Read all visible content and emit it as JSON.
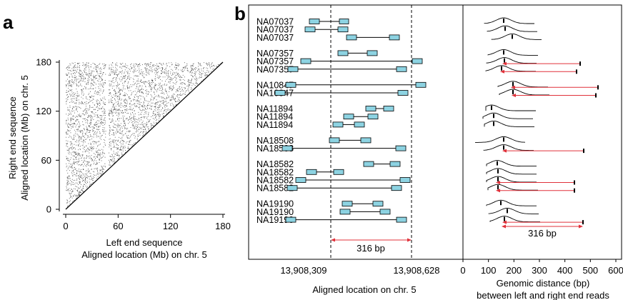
{
  "panel_a": {
    "letter": "a",
    "ylabel_line1": "Right end sequence",
    "ylabel_line2": "Aligned location (Mb) on chr. 5",
    "xlabel_line1": "Left end sequence",
    "xlabel_line2": "Aligned location (Mb) on chr. 5"
  },
  "panel_b": {
    "letter": "b",
    "left_tick_1": "13,908,309",
    "left_tick_2": "13,908,628",
    "left_xlabel": "Aligned location on chr. 5",
    "bracket_label": "316 bp",
    "right_bracket_label": "316 bp",
    "right_xlabel_line1": "Genomic distance (bp)",
    "right_xlabel_line2": "between left and right end reads"
  },
  "chart_data": [
    {
      "type": "scatter",
      "panel": "a",
      "xlabel": "Left end sequence Aligned location (Mb) on chr. 5",
      "ylabel": "Right end sequence Aligned location (Mb) on chr. 5",
      "xlim": [
        0,
        180
      ],
      "ylim": [
        0,
        180
      ],
      "x_ticks": [
        "0",
        "60",
        "120",
        "180"
      ],
      "y_ticks": [
        "0",
        "60",
        "120",
        "180"
      ],
      "description": "Dense scatter of paired-end locations filling the upper-left triangle above the diagonal y = x, with a blank vertical band near x = 47 Mb."
    },
    {
      "type": "scatter",
      "panel": "b-right",
      "xlabel": "Genomic distance (bp) between left and right end reads",
      "xlim": [
        0,
        600
      ],
      "x_ticks": [
        "0",
        "100",
        "200",
        "300",
        "400",
        "500",
        "600"
      ],
      "annotation": "316 bp"
    }
  ],
  "samples": [
    {
      "name": "NA07037",
      "group": 0,
      "b1": [
        433,
        447
      ],
      "b2": [
        475,
        488
      ],
      "lmark": 678,
      "peak": 705,
      "pk": 171,
      "arrow": null
    },
    {
      "name": "NA07037",
      "group": 0,
      "b1": [
        427,
        441
      ],
      "b2": [
        473,
        487
      ],
      "lmark": 682,
      "peak": 707,
      "pk": 169,
      "arrow": null
    },
    {
      "name": "NA07037",
      "group": 0,
      "b1": [
        485,
        499
      ],
      "b2": [
        545,
        559
      ],
      "lmark": 688,
      "peak": 717,
      "pk": 172,
      "arrow": null
    },
    {
      "name": "NA07357",
      "group": 1,
      "b1": [
        473,
        487
      ],
      "b2": [
        514,
        528
      ],
      "lmark": 683,
      "peak": 705,
      "pk": 168,
      "arrow": null
    },
    {
      "name": "NA07357",
      "group": 1,
      "b1": [
        421,
        435
      ],
      "b2": [
        577,
        591
      ],
      "lmark": 681,
      "peak": 706,
      "pk": 169,
      "arrow": [
        703,
        812
      ]
    },
    {
      "name": "NA07357",
      "group": 1,
      "b1": [
        403,
        417
      ],
      "b2": [
        555,
        569
      ],
      "lmark": 680,
      "peak": 702,
      "pk": 168,
      "arrow": [
        700,
        807
      ]
    },
    {
      "name": "NA10847",
      "group": 2,
      "b1": [
        400,
        414
      ],
      "b2": [
        582,
        596
      ],
      "lmark": 697,
      "peak": 718,
      "pk": 176,
      "arrow": [
        715,
        837
      ]
    },
    {
      "name": "NA10847",
      "group": 2,
      "b1": [
        385,
        399
      ],
      "b2": [
        557,
        571
      ],
      "lmark": 699,
      "peak": 718,
      "pk": 175,
      "arrow": [
        716,
        834
      ]
    },
    {
      "name": "NA11894",
      "group": 3,
      "b1": [
        512,
        526
      ],
      "b2": [
        537,
        551
      ],
      "lmark": 680,
      "peak": 688,
      "pk": 170,
      "arrow": null
    },
    {
      "name": "NA11894",
      "group": 3,
      "b1": [
        481,
        495
      ],
      "b2": [
        515,
        529
      ],
      "lmark": 676,
      "peak": 691,
      "pk": 171,
      "arrow": null
    },
    {
      "name": "NA11894",
      "group": 3,
      "b1": [
        466,
        480
      ],
      "b2": [
        496,
        510
      ],
      "lmark": 678,
      "peak": 691,
      "pk": 171,
      "arrow": null
    },
    {
      "name": "NA18508",
      "group": 4,
      "b1": [
        461,
        475
      ],
      "b2": [
        505,
        519
      ],
      "lmark": 665,
      "peak": 705,
      "pk": 178,
      "arrow": null
    },
    {
      "name": "NA18508",
      "group": 4,
      "b1": [
        395,
        409
      ],
      "b2": [
        554,
        568
      ],
      "lmark": 677,
      "peak": 705,
      "pk": 178,
      "arrow": [
        703,
        817
      ]
    },
    {
      "name": "NA18582",
      "group": 5,
      "b1": [
        509,
        523
      ],
      "b2": [
        546,
        560
      ],
      "lmark": 681,
      "peak": 696,
      "pk": 170,
      "arrow": null
    },
    {
      "name": "NA18582",
      "group": 5,
      "b1": [
        429,
        443
      ],
      "b2": [
        467,
        481
      ],
      "lmark": 681,
      "peak": 697,
      "pk": 172,
      "arrow": null
    },
    {
      "name": "NA18582",
      "group": 5,
      "b1": [
        414,
        428
      ],
      "b2": [
        560,
        574
      ],
      "lmark": 681,
      "peak": 697,
      "pk": 171,
      "arrow": [
        694,
        804
      ]
    },
    {
      "name": "NA18582",
      "group": 5,
      "b1": [
        402,
        416
      ],
      "b2": [
        548,
        562
      ],
      "lmark": 683,
      "peak": 697,
      "pk": 171,
      "arrow": [
        694,
        804
      ]
    },
    {
      "name": "NA19190",
      "group": 6,
      "b1": [
        479,
        493
      ],
      "b2": [
        522,
        536
      ],
      "lmark": 681,
      "peak": 701,
      "pk": 170,
      "arrow": null
    },
    {
      "name": "NA19190",
      "group": 6,
      "b1": [
        476,
        490
      ],
      "b2": [
        532,
        546
      ],
      "lmark": 684,
      "peak": 710,
      "pk": 171,
      "arrow": null
    },
    {
      "name": "NA19190",
      "group": 6,
      "b1": [
        400,
        414
      ],
      "b2": [
        555,
        569
      ],
      "lmark": 686,
      "peak": 706,
      "pk": 170,
      "arrow": [
        703,
        816
      ]
    }
  ],
  "colors": {
    "box_fill": "#8dd3e2",
    "arrow": "#e0313a",
    "dots": "#1a1a1a"
  }
}
